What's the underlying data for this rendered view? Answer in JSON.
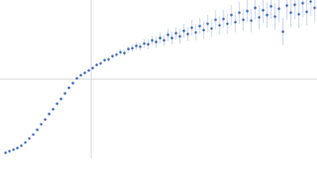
{
  "chart_data": {
    "type": "scatter",
    "x": [
      7,
      12,
      17,
      22,
      27,
      32,
      37,
      42,
      47,
      52,
      57,
      62,
      67,
      72,
      77,
      82,
      87,
      92,
      97,
      102,
      107,
      112,
      117,
      122,
      127,
      132,
      137,
      142,
      147,
      152,
      157,
      162,
      167,
      172,
      177,
      182,
      187,
      192,
      197,
      202,
      207,
      212,
      217,
      222,
      227,
      232,
      237,
      242,
      247,
      252,
      257,
      262,
      267,
      272,
      277,
      282,
      287,
      292,
      297,
      302,
      307,
      312,
      317,
      322,
      327,
      332,
      337,
      342,
      347,
      352,
      357,
      362,
      367,
      372,
      377,
      382,
      387,
      392,
      397
    ],
    "values": [
      7,
      9,
      11,
      13,
      16,
      20,
      25,
      30,
      36,
      43,
      49,
      56,
      62,
      69,
      75,
      82,
      89,
      95,
      101,
      105,
      108,
      111,
      114,
      118,
      120,
      124,
      125,
      129,
      131,
      134,
      133,
      138,
      139,
      142,
      141,
      145,
      144,
      149,
      147,
      152,
      149,
      156,
      152,
      158,
      154,
      161,
      157,
      165,
      159,
      167,
      162,
      170,
      164,
      175,
      168,
      176,
      170,
      181,
      172,
      184,
      175,
      186,
      174,
      190,
      178,
      187,
      181,
      192,
      179,
      189,
      160,
      193,
      184,
      194,
      182,
      196,
      185,
      198,
      190
    ],
    "errors": [
      0.5,
      0.5,
      0.5,
      0.5,
      0.5,
      0.5,
      0.5,
      0.5,
      0.5,
      0.5,
      0.5,
      0.5,
      0.5,
      0.5,
      0.5,
      0.5,
      0.5,
      0.5,
      0.5,
      0.5,
      1,
      1,
      1,
      2,
      2,
      2,
      3,
      3,
      3,
      4,
      4,
      4,
      5,
      5,
      5,
      6,
      6,
      6,
      7,
      7,
      7,
      8,
      8,
      8,
      9,
      9,
      9,
      10,
      10,
      10,
      11,
      11,
      11,
      12,
      12,
      12,
      13,
      13,
      13,
      14,
      14,
      14,
      15,
      15,
      15,
      16,
      16,
      16,
      17,
      17,
      17,
      18,
      18,
      18,
      18,
      18,
      18,
      18,
      18
    ],
    "color": "#3a66b5",
    "error_color": "#a9bde3",
    "xlim": [
      0,
      400
    ],
    "ylim": [
      0,
      200
    ],
    "reference_lines": {
      "x": [
        115
      ],
      "y": [
        100
      ],
      "color": "#d0d0d0"
    }
  }
}
